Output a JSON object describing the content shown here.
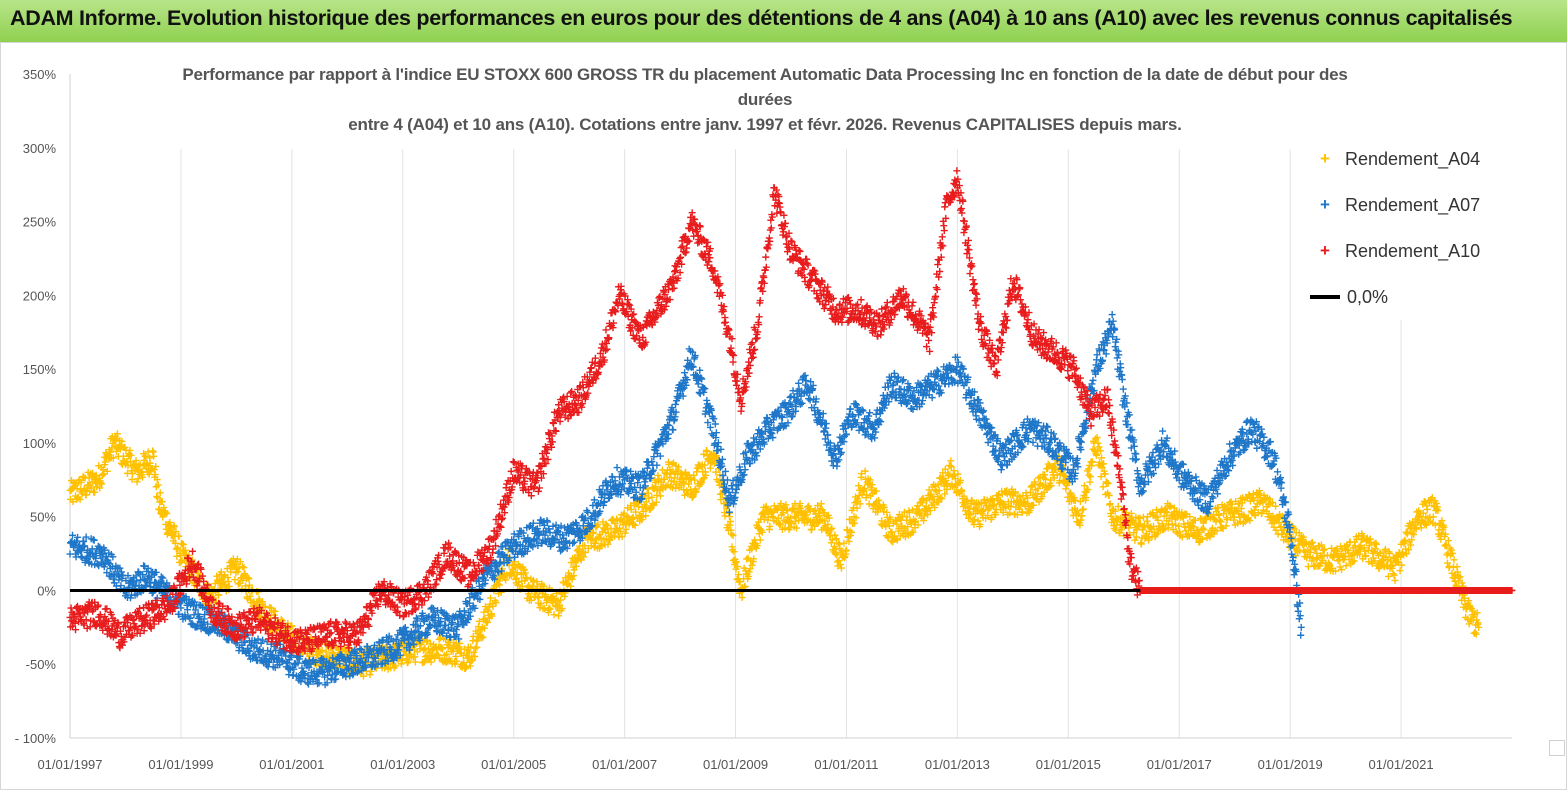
{
  "banner": {
    "title": "ADAM Informe. Evolution historique des performances en euros pour des détentions de 4 ans (A04) à 10 ans (A10) avec les revenus connus capitalisés"
  },
  "chart_data": {
    "type": "scatter",
    "title_line1": "Performance par rapport à l'indice EU STOXX 600 GROSS TR  du placement Automatic Data Processing Inc en fonction de la date de début pour des",
    "title_line2": "durées",
    "title_line3": "entre 4 (A04) et 10 ans (A10). Cotations entre janv. 1997 et févr. 2026. Revenus CAPITALISES depuis mars.",
    "xlabel": "",
    "ylabel": "",
    "xlim": [
      1997.0,
      2023.0
    ],
    "ylim": [
      -100,
      350
    ],
    "x_tick_labels": [
      "01/01/1997",
      "01/01/1999",
      "01/01/2001",
      "01/01/2003",
      "01/01/2005",
      "01/01/2007",
      "01/01/2009",
      "01/01/2011",
      "01/01/2013",
      "01/01/2015",
      "01/01/2017",
      "01/01/2019",
      "01/01/2021"
    ],
    "x_ticks": [
      1997,
      1999,
      2001,
      2003,
      2005,
      2007,
      2009,
      2011,
      2013,
      2015,
      2017,
      2019,
      2021
    ],
    "y_ticks": [
      -100,
      -50,
      0,
      50,
      100,
      150,
      200,
      250,
      300,
      350
    ],
    "y_tick_labels": [
      "- 100%",
      "-50%",
      "0%",
      "50%",
      "100%",
      "150%",
      "200%",
      "250%",
      "300%",
      "350%"
    ],
    "legend_position": "top-right",
    "zero_line": {
      "name": "0,0%",
      "value": 0,
      "color": "#000000"
    },
    "series": [
      {
        "name": "Rendement_A04",
        "color": "#ffc000",
        "marker": "+",
        "x": [
          1997.0,
          1997.5,
          1997.8,
          1998.2,
          1998.5,
          1998.6,
          1999.0,
          1999.5,
          2000.0,
          2000.5,
          2000.9,
          2001.3,
          2001.8,
          2002.2,
          2002.8,
          2003.2,
          2003.8,
          2004.2,
          2004.6,
          2004.9,
          2005.3,
          2005.8,
          2006.3,
          2006.8,
          2007.3,
          2007.8,
          2008.2,
          2008.6,
          2008.9,
          2009.1,
          2009.5,
          2010.0,
          2010.6,
          2010.9,
          2011.3,
          2011.8,
          2012.3,
          2012.9,
          2013.3,
          2013.8,
          2014.3,
          2014.8,
          2015.2,
          2015.5,
          2015.8,
          2016.3,
          2016.8,
          2017.3,
          2017.8,
          2018.2,
          2018.5,
          2018.9,
          2019.3,
          2019.8,
          2020.3,
          2020.9,
          2021.3,
          2021.6,
          2021.9,
          2022.2,
          2022.4
        ],
        "values": [
          65,
          75,
          100,
          80,
          90,
          60,
          25,
          -5,
          15,
          -15,
          -30,
          -40,
          -45,
          -50,
          -45,
          -40,
          -40,
          -45,
          -10,
          20,
          0,
          -10,
          35,
          40,
          55,
          80,
          70,
          95,
          40,
          0,
          50,
          50,
          50,
          20,
          75,
          40,
          50,
          80,
          50,
          60,
          60,
          85,
          50,
          100,
          50,
          40,
          50,
          40,
          50,
          55,
          60,
          40,
          25,
          20,
          30,
          15,
          50,
          55,
          20,
          -15,
          -25
        ]
      },
      {
        "name": "Rendement_A07",
        "color": "#1f77c9",
        "marker": "+",
        "x": [
          1997.0,
          1997.6,
          1998.0,
          1998.4,
          1998.8,
          1999.2,
          1999.8,
          2000.3,
          2000.8,
          2001.2,
          2001.6,
          2002.0,
          2002.5,
          2003.0,
          2003.5,
          2004.0,
          2004.5,
          2005.0,
          2005.5,
          2005.9,
          2006.3,
          2006.8,
          2007.3,
          2007.9,
          2008.2,
          2008.6,
          2008.9,
          2009.2,
          2009.6,
          2009.9,
          2010.3,
          2010.8,
          2011.1,
          2011.5,
          2011.8,
          2012.2,
          2012.6,
          2013.0,
          2013.4,
          2013.8,
          2014.3,
          2014.7,
          2015.1,
          2015.5,
          2015.8,
          2016.0,
          2016.3,
          2016.7,
          2017.0,
          2017.5,
          2017.9,
          2018.3,
          2018.7,
          2019.0,
          2019.2
        ],
        "values": [
          30,
          25,
          0,
          10,
          -5,
          -15,
          -25,
          -40,
          -45,
          -55,
          -55,
          -50,
          -45,
          -35,
          -20,
          -25,
          10,
          30,
          40,
          35,
          45,
          75,
          70,
          120,
          160,
          110,
          60,
          90,
          110,
          120,
          140,
          90,
          120,
          110,
          140,
          130,
          140,
          150,
          120,
          90,
          110,
          100,
          80,
          150,
          180,
          130,
          70,
          100,
          80,
          60,
          90,
          110,
          90,
          40,
          -25
        ]
      },
      {
        "name": "Rendement_A10",
        "color": "#e81c1c",
        "marker": "+",
        "x": [
          1997.0,
          1997.5,
          1997.9,
          1998.3,
          1998.8,
          1999.2,
          1999.6,
          2000.0,
          2000.4,
          2000.8,
          2001.2,
          2001.7,
          2002.2,
          2002.6,
          2003.0,
          2003.4,
          2003.8,
          2004.2,
          2004.6,
          2005.0,
          2005.4,
          2005.8,
          2006.2,
          2006.6,
          2006.9,
          2007.3,
          2007.6,
          2007.9,
          2008.2,
          2008.6,
          2008.9,
          2009.1,
          2009.4,
          2009.7,
          2010.0,
          2010.4,
          2010.8,
          2011.2,
          2011.6,
          2012.0,
          2012.5,
          2012.8,
          2013.0,
          2013.4,
          2013.7,
          2014.0,
          2014.4,
          2014.8,
          2015.1,
          2015.4,
          2015.7,
          2016.0,
          2016.1,
          2016.3,
          2017.0,
          2018.0,
          2019.0,
          2020.0,
          2021.0,
          2022.0,
          2023.0
        ],
        "values": [
          -20,
          -15,
          -30,
          -20,
          -10,
          20,
          -15,
          -25,
          -20,
          -30,
          -35,
          -30,
          -30,
          0,
          -10,
          0,
          25,
          10,
          30,
          80,
          70,
          120,
          130,
          160,
          200,
          170,
          190,
          210,
          250,
          220,
          170,
          130,
          180,
          270,
          230,
          210,
          190,
          190,
          180,
          200,
          170,
          260,
          280,
          180,
          150,
          210,
          170,
          160,
          150,
          120,
          130,
          60,
          20,
          0,
          0,
          0,
          0,
          0,
          0,
          0,
          0
        ]
      }
    ]
  }
}
